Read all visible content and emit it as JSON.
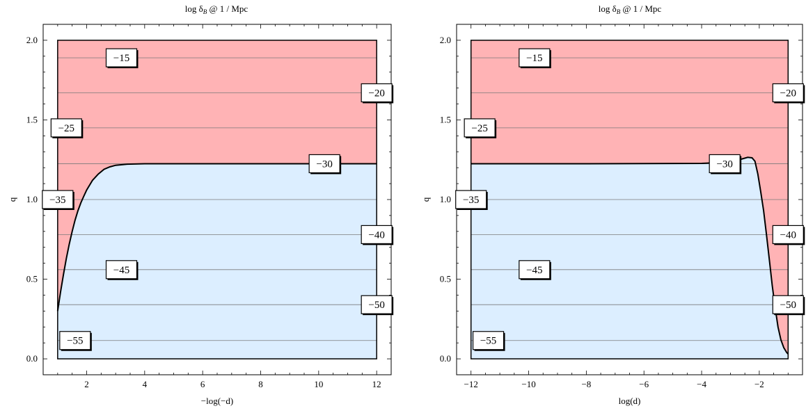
{
  "chart_data": [
    {
      "type": "contour",
      "title": "log δ_B @ 1 / Mpc",
      "title_base": "log δ",
      "title_sub": "B",
      "title_rest": " @ 1 / Mpc",
      "xlabel": "−log(−d)",
      "ylabel": "q",
      "xlim": [
        0.5,
        12.5
      ],
      "ylim": [
        -0.1,
        2.1
      ],
      "region": {
        "x": [
          1,
          12
        ],
        "y": [
          0,
          2
        ]
      },
      "xticks": [
        2,
        4,
        6,
        8,
        10,
        12
      ],
      "xtick_labels": [
        "2",
        "4",
        "6",
        "8",
        "10",
        "12"
      ],
      "yticks": [
        0.0,
        0.5,
        1.0,
        1.5,
        2.0
      ],
      "ytick_labels": [
        "0.0",
        "0.5",
        "1.0",
        "1.5",
        "2.0"
      ],
      "contour_levels_q": [
        1.89,
        1.67,
        1.45,
        1.225,
        1.0,
        0.78,
        0.56,
        0.34,
        0.115
      ],
      "contour_labels": [
        {
          "text": "−15",
          "x": 3.2,
          "q": 1.89
        },
        {
          "text": "−20",
          "x": 12.0,
          "q": 1.67
        },
        {
          "text": "−25",
          "x": 1.3,
          "q": 1.45
        },
        {
          "text": "−30",
          "x": 10.2,
          "q": 1.225
        },
        {
          "text": "−35",
          "x": 1.0,
          "q": 1.0
        },
        {
          "text": "−40",
          "x": 12.0,
          "q": 0.78
        },
        {
          "text": "−45",
          "x": 3.2,
          "q": 0.56
        },
        {
          "text": "−50",
          "x": 12.0,
          "q": 0.34
        },
        {
          "text": "−55",
          "x": 1.6,
          "q": 0.115
        }
      ],
      "boundary_curve": [
        [
          1.0,
          0.3
        ],
        [
          1.1,
          0.42
        ],
        [
          1.2,
          0.53
        ],
        [
          1.3,
          0.63
        ],
        [
          1.4,
          0.72
        ],
        [
          1.5,
          0.8
        ],
        [
          1.6,
          0.87
        ],
        [
          1.7,
          0.93
        ],
        [
          1.8,
          0.98
        ],
        [
          1.9,
          1.02
        ],
        [
          2.0,
          1.06
        ],
        [
          2.2,
          1.12
        ],
        [
          2.4,
          1.16
        ],
        [
          2.6,
          1.19
        ],
        [
          2.8,
          1.205
        ],
        [
          3.0,
          1.215
        ],
        [
          3.4,
          1.222
        ],
        [
          4.0,
          1.225
        ],
        [
          6.0,
          1.225
        ],
        [
          8.0,
          1.225
        ],
        [
          10.0,
          1.225
        ],
        [
          12.0,
          1.225
        ]
      ],
      "colors": {
        "upper_region": "#ffb3b5",
        "lower_region": "#dceeff",
        "contour_line": "#7a7a7a",
        "boundary": "#000000"
      }
    },
    {
      "type": "contour",
      "title": "log δ_B @ 1 / Mpc",
      "title_base": "log δ",
      "title_sub": "B",
      "title_rest": " @ 1 / Mpc",
      "xlabel": "log(d)",
      "ylabel": "q",
      "xlim": [
        -12.5,
        -0.5
      ],
      "ylim": [
        -0.1,
        2.1
      ],
      "region": {
        "x": [
          -12,
          -1
        ],
        "y": [
          0,
          2
        ]
      },
      "xticks": [
        -12,
        -10,
        -8,
        -6,
        -4,
        -2
      ],
      "xtick_labels": [
        "−12",
        "−10",
        "−8",
        "−6",
        "−4",
        "−2"
      ],
      "yticks": [
        0.0,
        0.5,
        1.0,
        1.5,
        2.0
      ],
      "ytick_labels": [
        "0.0",
        "0.5",
        "1.0",
        "1.5",
        "2.0"
      ],
      "contour_levels_q": [
        1.89,
        1.67,
        1.45,
        1.225,
        1.0,
        0.78,
        0.56,
        0.34,
        0.115
      ],
      "contour_labels": [
        {
          "text": "−15",
          "x": -9.8,
          "q": 1.89
        },
        {
          "text": "−20",
          "x": -1.0,
          "q": 1.67
        },
        {
          "text": "−25",
          "x": -11.7,
          "q": 1.45
        },
        {
          "text": "−30",
          "x": -3.2,
          "q": 1.225
        },
        {
          "text": "−35",
          "x": -12.0,
          "q": 1.0
        },
        {
          "text": "−40",
          "x": -1.0,
          "q": 0.78
        },
        {
          "text": "−45",
          "x": -9.8,
          "q": 0.56
        },
        {
          "text": "−50",
          "x": -1.0,
          "q": 0.34
        },
        {
          "text": "−55",
          "x": -11.4,
          "q": 0.115
        }
      ],
      "boundary_curve": [
        [
          -12.0,
          1.225
        ],
        [
          -8.0,
          1.225
        ],
        [
          -4.0,
          1.227
        ],
        [
          -3.0,
          1.235
        ],
        [
          -2.6,
          1.255
        ],
        [
          -2.4,
          1.265
        ],
        [
          -2.25,
          1.262
        ],
        [
          -2.15,
          1.24
        ],
        [
          -2.05,
          1.16
        ],
        [
          -1.95,
          1.05
        ],
        [
          -1.85,
          0.93
        ],
        [
          -1.75,
          0.78
        ],
        [
          -1.65,
          0.62
        ],
        [
          -1.55,
          0.46
        ],
        [
          -1.45,
          0.32
        ],
        [
          -1.35,
          0.2
        ],
        [
          -1.25,
          0.12
        ],
        [
          -1.15,
          0.07
        ],
        [
          -1.05,
          0.04
        ],
        [
          -1.0,
          0.03
        ]
      ],
      "colors": {
        "upper_region": "#ffb3b5",
        "lower_region": "#dceeff",
        "contour_line": "#7a7a7a",
        "boundary": "#000000"
      }
    }
  ]
}
